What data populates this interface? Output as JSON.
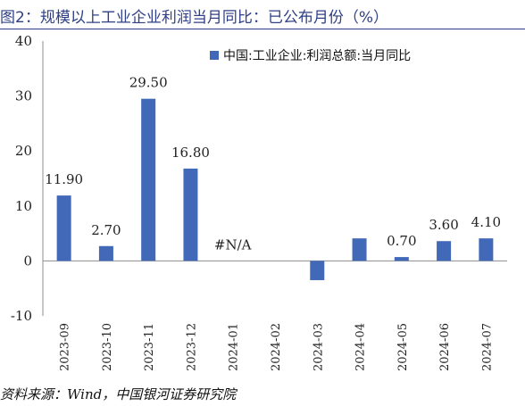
{
  "header": {
    "title": "图2：规模以上工业企业利润当月同比：已公布月份（%）"
  },
  "footer": {
    "source": "资料来源：Wind，中国银河证券研究院"
  },
  "colors": {
    "bar": "#4169b8",
    "title": "#2e3f86"
  },
  "chart_data": {
    "type": "bar",
    "title": "",
    "xlabel": "",
    "ylabel": "",
    "ylim": [
      -10,
      40
    ],
    "yticks": [
      -10,
      0,
      10,
      20,
      30,
      40
    ],
    "grid": false,
    "legend_position": "top-right",
    "categories": [
      "2023-09",
      "2023-10",
      "2023-11",
      "2023-12",
      "2024-01",
      "2024-02",
      "2024-03",
      "2024-04",
      "2024-05",
      "2024-06",
      "2024-07"
    ],
    "series": [
      {
        "name": "中国:工业企业:利润总额:当月同比",
        "values": [
          11.9,
          2.7,
          29.5,
          16.8,
          null,
          null,
          -3.5,
          4.1,
          0.7,
          3.6,
          4.1
        ]
      }
    ],
    "data_labels": [
      "11.90",
      "2.70",
      "29.50",
      "16.80",
      "#N/A",
      "",
      "",
      "",
      "0.70",
      "3.60",
      "4.10"
    ]
  }
}
